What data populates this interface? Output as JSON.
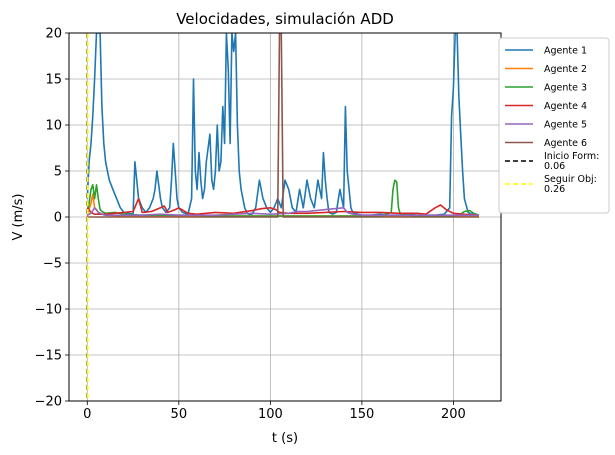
{
  "chart_data": {
    "type": "line",
    "title": "Velocidades, simulación ADD",
    "xlabel": "t (s)",
    "ylabel": "V (m/s)",
    "xlim": [
      -10,
      226
    ],
    "ylim": [
      -20,
      20
    ],
    "xticks": [
      0,
      50,
      100,
      150,
      200
    ],
    "yticks": [
      -20,
      -15,
      -10,
      -5,
      0,
      5,
      10,
      15,
      20
    ],
    "xtick_labels": [
      "0",
      "50",
      "100",
      "150",
      "200"
    ],
    "ytick_labels": [
      "−20",
      "−15",
      "−10",
      "−5",
      "0",
      "5",
      "10",
      "15",
      "20"
    ],
    "grid": true,
    "legend_position": "outside-right-top",
    "series": [
      {
        "name": "Agente 1",
        "color": "#1f77b4",
        "points": [
          [
            0,
            2
          ],
          [
            1,
            6
          ],
          [
            2,
            8
          ],
          [
            3,
            11
          ],
          [
            4,
            15
          ],
          [
            5,
            20
          ],
          [
            7,
            20
          ],
          [
            8,
            12
          ],
          [
            9,
            8
          ],
          [
            10,
            6
          ],
          [
            12,
            4
          ],
          [
            14,
            3
          ],
          [
            16,
            2
          ],
          [
            18,
            1
          ],
          [
            20,
            0.5
          ],
          [
            25,
            0.3
          ],
          [
            26,
            6
          ],
          [
            28,
            2
          ],
          [
            30,
            1
          ],
          [
            32,
            0.5
          ],
          [
            34,
            1
          ],
          [
            36,
            2
          ],
          [
            37,
            3
          ],
          [
            38,
            5
          ],
          [
            40,
            2
          ],
          [
            41,
            1
          ],
          [
            43,
            0.5
          ],
          [
            45,
            1
          ],
          [
            46,
            4
          ],
          [
            47,
            8
          ],
          [
            48,
            5
          ],
          [
            49,
            2
          ],
          [
            50,
            1
          ],
          [
            52,
            0.5
          ],
          [
            55,
            0.3
          ],
          [
            57,
            2
          ],
          [
            58,
            15
          ],
          [
            59,
            5
          ],
          [
            60,
            3
          ],
          [
            61,
            7
          ],
          [
            62,
            4
          ],
          [
            63,
            2
          ],
          [
            64,
            3
          ],
          [
            65,
            6
          ],
          [
            67,
            9
          ],
          [
            68,
            4
          ],
          [
            69,
            3
          ],
          [
            70,
            5
          ],
          [
            71,
            10
          ],
          [
            72,
            5
          ],
          [
            73,
            6
          ],
          [
            74,
            12
          ],
          [
            75,
            8
          ],
          [
            76,
            20
          ],
          [
            77,
            16
          ],
          [
            78,
            8
          ],
          [
            79,
            20
          ],
          [
            80,
            18
          ],
          [
            81,
            20
          ],
          [
            82,
            10
          ],
          [
            83,
            5
          ],
          [
            84,
            3
          ],
          [
            85,
            2
          ],
          [
            86,
            1
          ],
          [
            87,
            0.5
          ],
          [
            88,
            0.3
          ],
          [
            90,
            0.3
          ],
          [
            92,
            1
          ],
          [
            94,
            4
          ],
          [
            96,
            2
          ],
          [
            98,
            1
          ],
          [
            100,
            0.5
          ],
          [
            102,
            1
          ],
          [
            104,
            2
          ],
          [
            106,
            1
          ],
          [
            108,
            4
          ],
          [
            110,
            3
          ],
          [
            112,
            1
          ],
          [
            114,
            0.5
          ],
          [
            116,
            3
          ],
          [
            118,
            1
          ],
          [
            120,
            4
          ],
          [
            122,
            2
          ],
          [
            124,
            1
          ],
          [
            126,
            4
          ],
          [
            128,
            2
          ],
          [
            129,
            7
          ],
          [
            130,
            4
          ],
          [
            131,
            2
          ],
          [
            132,
            0.5
          ],
          [
            134,
            0.3
          ],
          [
            136,
            0.5
          ],
          [
            138,
            3
          ],
          [
            140,
            1
          ],
          [
            141,
            12
          ],
          [
            142,
            5
          ],
          [
            143,
            3
          ],
          [
            144,
            1
          ],
          [
            145,
            0.5
          ],
          [
            148,
            0.3
          ],
          [
            150,
            0.2
          ],
          [
            155,
            0.2
          ],
          [
            160,
            0.3
          ],
          [
            165,
            0.2
          ],
          [
            170,
            0.2
          ],
          [
            175,
            0.3
          ],
          [
            180,
            0.2
          ],
          [
            190,
            0.2
          ],
          [
            195,
            0.3
          ],
          [
            198,
            1
          ],
          [
            199,
            11
          ],
          [
            200,
            14
          ],
          [
            201,
            20
          ],
          [
            202,
            20
          ],
          [
            203,
            13
          ],
          [
            204,
            9
          ],
          [
            205,
            5
          ],
          [
            206,
            2
          ],
          [
            208,
            0.5
          ],
          [
            210,
            0.3
          ],
          [
            214,
            0.2
          ]
        ]
      },
      {
        "name": "Agente 2",
        "color": "#ff7f0e",
        "points": [
          [
            0,
            0
          ],
          [
            1,
            0.8
          ],
          [
            2,
            1.5
          ],
          [
            3,
            2.5
          ],
          [
            4,
            1
          ],
          [
            5,
            0.8
          ],
          [
            6,
            0.5
          ],
          [
            8,
            0.3
          ],
          [
            10,
            0.2
          ],
          [
            20,
            0.1
          ],
          [
            40,
            0.1
          ],
          [
            60,
            0.1
          ],
          [
            80,
            0.1
          ],
          [
            100,
            0.1
          ],
          [
            120,
            0.1
          ],
          [
            140,
            0.1
          ],
          [
            160,
            0.1
          ],
          [
            180,
            0.1
          ],
          [
            200,
            0.1
          ],
          [
            214,
            0.1
          ]
        ]
      },
      {
        "name": "Agente 3",
        "color": "#2ca02c",
        "points": [
          [
            0,
            0.5
          ],
          [
            1,
            1.5
          ],
          [
            2,
            3
          ],
          [
            3,
            3.5
          ],
          [
            4,
            2
          ],
          [
            5,
            3.5
          ],
          [
            6,
            2
          ],
          [
            7,
            0.8
          ],
          [
            8,
            0.6
          ],
          [
            10,
            0.4
          ],
          [
            15,
            0.5
          ],
          [
            20,
            0.3
          ],
          [
            30,
            0.2
          ],
          [
            40,
            0.2
          ],
          [
            50,
            0.2
          ],
          [
            60,
            0.2
          ],
          [
            70,
            0.1
          ],
          [
            80,
            0.1
          ],
          [
            90,
            0.1
          ],
          [
            100,
            0.1
          ],
          [
            110,
            0.1
          ],
          [
            120,
            0.1
          ],
          [
            130,
            0.1
          ],
          [
            140,
            0.1
          ],
          [
            150,
            0.1
          ],
          [
            160,
            0.1
          ],
          [
            166,
            0.5
          ],
          [
            167,
            3
          ],
          [
            168,
            4
          ],
          [
            169,
            3.8
          ],
          [
            170,
            1
          ],
          [
            171,
            0.3
          ],
          [
            180,
            0.1
          ],
          [
            190,
            0.1
          ],
          [
            200,
            0.1
          ],
          [
            204,
            0.3
          ],
          [
            206,
            0.6
          ],
          [
            209,
            0.7
          ],
          [
            211,
            0.4
          ],
          [
            214,
            0.2
          ]
        ]
      },
      {
        "name": "Agente 4",
        "color": "#d62728",
        "points": [
          [
            0,
            1
          ],
          [
            2,
            0.5
          ],
          [
            4,
            0.3
          ],
          [
            10,
            0.3
          ],
          [
            15,
            0.4
          ],
          [
            20,
            0.5
          ],
          [
            25,
            0.6
          ],
          [
            28,
            2
          ],
          [
            30,
            0.5
          ],
          [
            35,
            0.6
          ],
          [
            40,
            1
          ],
          [
            42,
            1.2
          ],
          [
            44,
            0.5
          ],
          [
            48,
            0.8
          ],
          [
            50,
            1
          ],
          [
            55,
            0.4
          ],
          [
            60,
            0.3
          ],
          [
            70,
            0.5
          ],
          [
            80,
            0.4
          ],
          [
            90,
            0.7
          ],
          [
            95,
            0.9
          ],
          [
            100,
            1
          ],
          [
            103,
            0.8
          ],
          [
            105,
            0.5
          ],
          [
            110,
            0.4
          ],
          [
            120,
            0.4
          ],
          [
            130,
            0.5
          ],
          [
            140,
            0.6
          ],
          [
            150,
            0.5
          ],
          [
            160,
            0.5
          ],
          [
            170,
            0.4
          ],
          [
            180,
            0.4
          ],
          [
            185,
            0.3
          ],
          [
            190,
            1
          ],
          [
            193,
            1.3
          ],
          [
            196,
            0.8
          ],
          [
            200,
            0.4
          ],
          [
            205,
            0.3
          ],
          [
            214,
            0.2
          ]
        ]
      },
      {
        "name": "Agente 5",
        "color": "#9467bd",
        "points": [
          [
            0,
            0.2
          ],
          [
            2,
            0.4
          ],
          [
            4,
            1
          ],
          [
            6,
            0.5
          ],
          [
            8,
            0.3
          ],
          [
            10,
            0.2
          ],
          [
            20,
            0.2
          ],
          [
            30,
            0.2
          ],
          [
            40,
            0.3
          ],
          [
            50,
            0.2
          ],
          [
            60,
            0.2
          ],
          [
            70,
            0.2
          ],
          [
            80,
            0.3
          ],
          [
            90,
            0.4
          ],
          [
            100,
            0.3
          ],
          [
            110,
            0.4
          ],
          [
            115,
            0.6
          ],
          [
            120,
            0.6
          ],
          [
            125,
            0.7
          ],
          [
            130,
            0.8
          ],
          [
            135,
            0.9
          ],
          [
            140,
            1
          ],
          [
            142,
            0.5
          ],
          [
            145,
            0.3
          ],
          [
            150,
            0.2
          ],
          [
            160,
            0.2
          ],
          [
            180,
            0.2
          ],
          [
            200,
            0.2
          ],
          [
            214,
            0.2
          ]
        ]
      },
      {
        "name": "Agente 6",
        "color": "#8c564b",
        "points": [
          [
            0,
            0
          ],
          [
            10,
            0
          ],
          [
            20,
            0
          ],
          [
            40,
            0
          ],
          [
            60,
            0
          ],
          [
            80,
            0
          ],
          [
            100,
            0
          ],
          [
            104,
            0
          ],
          [
            105,
            20
          ],
          [
            106,
            20
          ],
          [
            107,
            0
          ],
          [
            110,
            0
          ],
          [
            120,
            0
          ],
          [
            140,
            0
          ],
          [
            160,
            0
          ],
          [
            180,
            0
          ],
          [
            200,
            0
          ],
          [
            214,
            0
          ]
        ]
      },
      {
        "name": "Inicio Form:\n0.06",
        "color": "#000000",
        "style": "dashed",
        "vertical_x": 0.06
      },
      {
        "name": "Seguir Obj:\n0.26",
        "color": "#ffff00",
        "style": "dashed",
        "vertical_x": 0.26
      }
    ]
  }
}
